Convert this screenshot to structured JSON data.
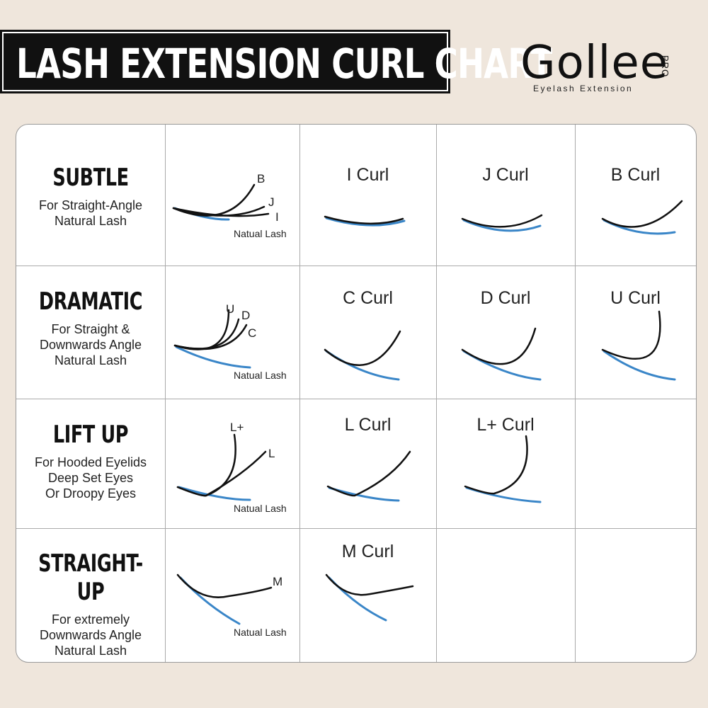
{
  "header": {
    "title": "LASH EXTENSION CURL CHART",
    "brand": "Gollee",
    "brand_badge": "PRO",
    "brand_tagline": "Eyelash Extension"
  },
  "rows": [
    {
      "category": "SUBTLE",
      "description": [
        "For Straight-Angle",
        "Natural Lash"
      ],
      "overlay_labels": [
        "B",
        "J",
        "I"
      ],
      "natural_lash_label": "Natual Lash",
      "curls": [
        "I Curl",
        "J Curl",
        "B Curl"
      ]
    },
    {
      "category": "DRAMATIC",
      "description": [
        "For Straight &",
        "Downwards Angle",
        "Natural Lash"
      ],
      "overlay_labels": [
        "U",
        "D",
        "C"
      ],
      "natural_lash_label": "Natual Lash",
      "curls": [
        "C Curl",
        "D Curl",
        "U Curl"
      ]
    },
    {
      "category": "LIFT UP",
      "description": [
        "For Hooded Eyelids",
        "Deep Set Eyes",
        "Or Droopy Eyes"
      ],
      "overlay_labels": [
        "L+",
        "L"
      ],
      "natural_lash_label": "Natual Lash",
      "curls": [
        "L Curl",
        "L+ Curl"
      ]
    },
    {
      "category": "STRAIGHT-UP",
      "description": [
        "For extremely",
        "Downwards Angle",
        "Natural Lash"
      ],
      "overlay_labels": [
        "M"
      ],
      "natural_lash_label": "Natual Lash",
      "curls": [
        "M Curl"
      ]
    }
  ],
  "colors": {
    "background": "#efe6dc",
    "lash": "#111111",
    "natural_lash": "#3a86c8"
  }
}
